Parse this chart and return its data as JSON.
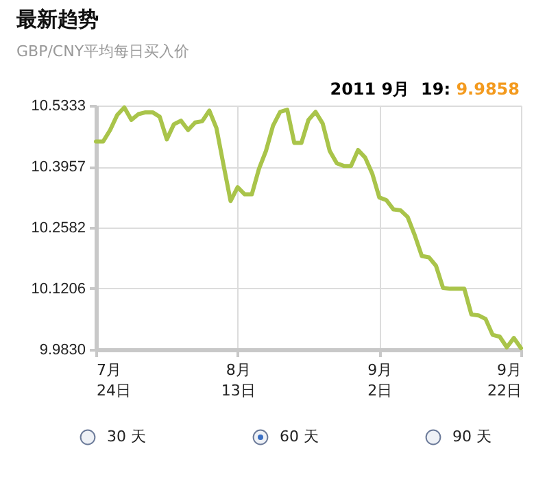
{
  "chart_data": {
    "type": "line",
    "title": "最新趋势",
    "subtitle": "GBP/CNY平均每日买入价",
    "annotations": [
      "2011 9月  19:",
      "9.9858",
      "30 天",
      "60 天",
      "90 天"
    ],
    "x": [
      "2011-07-24",
      "2011-07-25",
      "2011-07-26",
      "2011-07-27",
      "2011-07-28",
      "2011-07-29",
      "2011-07-30",
      "2011-07-31",
      "2011-08-01",
      "2011-08-02",
      "2011-08-03",
      "2011-08-04",
      "2011-08-05",
      "2011-08-06",
      "2011-08-07",
      "2011-08-08",
      "2011-08-09",
      "2011-08-10",
      "2011-08-11",
      "2011-08-12",
      "2011-08-13",
      "2011-08-14",
      "2011-08-15",
      "2011-08-16",
      "2011-08-17",
      "2011-08-18",
      "2011-08-19",
      "2011-08-20",
      "2011-08-21",
      "2011-08-22",
      "2011-08-23",
      "2011-08-24",
      "2011-08-25",
      "2011-08-26",
      "2011-08-27",
      "2011-08-28",
      "2011-08-29",
      "2011-08-30",
      "2011-08-31",
      "2011-09-01",
      "2011-09-02",
      "2011-09-03",
      "2011-09-04",
      "2011-09-05",
      "2011-09-06",
      "2011-09-07",
      "2011-09-08",
      "2011-09-09",
      "2011-09-10",
      "2011-09-11",
      "2011-09-12",
      "2011-09-13",
      "2011-09-14",
      "2011-09-15",
      "2011-09-16",
      "2011-09-17",
      "2011-09-18",
      "2011-09-19",
      "2011-09-20",
      "2011-09-21",
      "2011-09-22"
    ],
    "series": [
      {
        "color": "#a9c44a",
        "values": [
          10.452,
          10.452,
          10.478,
          10.512,
          10.529,
          10.501,
          10.514,
          10.518,
          10.518,
          10.508,
          10.457,
          10.491,
          10.499,
          10.478,
          10.495,
          10.498,
          10.522,
          10.483,
          10.4,
          10.318,
          10.349,
          10.333,
          10.333,
          10.39,
          10.431,
          10.488,
          10.519,
          10.524,
          10.449,
          10.449,
          10.501,
          10.519,
          10.493,
          10.431,
          10.403,
          10.397,
          10.397,
          10.433,
          10.416,
          10.38,
          10.326,
          10.32,
          10.299,
          10.297,
          10.282,
          10.241,
          10.194,
          10.191,
          10.172,
          10.122,
          10.12,
          10.12,
          10.12,
          10.062,
          10.06,
          10.052,
          10.016,
          10.012,
          9.988,
          10.009,
          9.986
        ]
      }
    ],
    "xlim": [
      "2011-07-24",
      "2011-09-22"
    ],
    "xticks": [
      {
        "value": "2011-07-24",
        "label": "7月\n24日"
      },
      {
        "value": "2011-08-13",
        "label": "8月\n13日"
      },
      {
        "value": "2011-09-02",
        "label": "9月\n2日"
      },
      {
        "value": "2011-09-22",
        "label": "9月\n22日"
      }
    ],
    "ylim": [
      9.983,
      10.5333
    ],
    "yticks": [
      {
        "value": 9.983,
        "label": "9.9830"
      },
      10.1206,
      10.2582,
      10.3957,
      10.5333
    ],
    "grid": true,
    "legend": false,
    "marker": "none",
    "line_style": "solid"
  }
}
